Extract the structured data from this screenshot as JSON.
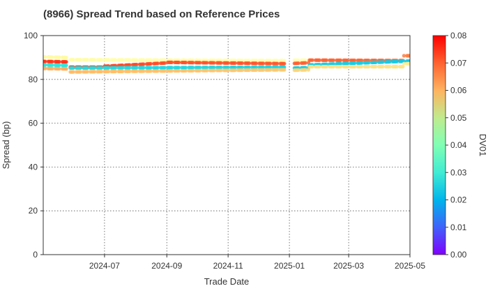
{
  "chart_data": {
    "type": "scatter",
    "title": "(8966)   Spread Trend based on Reference Prices",
    "xlabel": "Trade Date",
    "ylabel": "Spread (bp)",
    "colorbar_label": "DV01",
    "x_range": [
      "2024-05-01",
      "2025-05-01"
    ],
    "ylim": [
      0,
      100
    ],
    "x_ticks": [
      "2024-07",
      "2024-09",
      "2024-11",
      "2025-01",
      "2025-03",
      "2025-05"
    ],
    "y_ticks": [
      0,
      20,
      40,
      60,
      80,
      100
    ],
    "colorbar_range": [
      0,
      0.08
    ],
    "colorbar_ticks": [
      "0.00",
      "0.01",
      "0.02",
      "0.03",
      "0.04",
      "0.05",
      "0.06",
      "0.07",
      "0.08"
    ],
    "colormap": "rainbow",
    "grid": true,
    "series": [
      {
        "segments": [
          {
            "x_start": "2024-05-01",
            "x_end": "2024-05-24",
            "y_start": 90.3,
            "y_end": 90.0,
            "dv01_start": 0.045,
            "dv01_end": 0.045
          },
          {
            "x_start": "2024-05-28",
            "x_end": "2024-12-27",
            "y_start": 89.0,
            "y_end": 88.6,
            "dv01_start": 0.043,
            "dv01_end": 0.041
          },
          {
            "x_start": "2025-01-06",
            "x_end": "2025-01-20",
            "y_start": 88.8,
            "y_end": 88.8,
            "dv01_start": 0.04,
            "dv01_end": 0.04
          }
        ]
      },
      {
        "segments": [
          {
            "x_start": "2024-05-01",
            "x_end": "2024-05-24",
            "y_start": 88.2,
            "y_end": 88.0,
            "dv01_start": 0.075,
            "dv01_end": 0.075
          },
          {
            "x_start": "2024-05-28",
            "x_end": "2024-06-30",
            "y_start": 85.6,
            "y_end": 85.6,
            "dv01_start": 0.074,
            "dv01_end": 0.073
          },
          {
            "x_start": "2024-07-01",
            "x_end": "2024-08-31",
            "y_start": 86.0,
            "y_end": 87.5,
            "dv01_start": 0.073,
            "dv01_end": 0.072
          },
          {
            "x_start": "2024-09-01",
            "x_end": "2024-12-27",
            "y_start": 87.8,
            "y_end": 87.2,
            "dv01_start": 0.072,
            "dv01_end": 0.071
          },
          {
            "x_start": "2025-01-06",
            "x_end": "2025-01-20",
            "y_start": 87.3,
            "y_end": 87.6,
            "dv01_start": 0.07,
            "dv01_end": 0.07
          },
          {
            "x_start": "2025-01-21",
            "x_end": "2025-04-24",
            "y_start": 88.8,
            "y_end": 88.6,
            "dv01_start": 0.07,
            "dv01_end": 0.069
          },
          {
            "x_start": "2025-04-25",
            "x_end": "2025-05-01",
            "y_start": 90.8,
            "y_end": 90.8,
            "dv01_start": 0.067,
            "dv01_end": 0.067
          }
        ]
      },
      {
        "segments": [
          {
            "x_start": "2024-05-01",
            "x_end": "2024-05-24",
            "y_start": 86.6,
            "y_end": 86.4,
            "dv01_start": 0.028,
            "dv01_end": 0.028
          },
          {
            "x_start": "2024-05-28",
            "x_end": "2024-12-27",
            "y_start": 85.2,
            "y_end": 85.6,
            "dv01_start": 0.026,
            "dv01_end": 0.025
          },
          {
            "x_start": "2025-01-06",
            "x_end": "2025-01-20",
            "y_start": 85.2,
            "y_end": 85.4,
            "dv01_start": 0.024,
            "dv01_end": 0.024
          },
          {
            "x_start": "2025-01-21",
            "x_end": "2025-05-01",
            "y_start": 86.6,
            "y_end": 88.4,
            "dv01_start": 0.024,
            "dv01_end": 0.023
          }
        ]
      },
      {
        "segments": [
          {
            "x_start": "2024-05-01",
            "x_end": "2024-05-24",
            "y_start": 85.0,
            "y_end": 84.8,
            "dv01_start": 0.061,
            "dv01_end": 0.061
          },
          {
            "x_start": "2024-05-28",
            "x_end": "2024-12-27",
            "y_start": 83.4,
            "y_end": 84.4,
            "dv01_start": 0.059,
            "dv01_end": 0.057
          },
          {
            "x_start": "2025-01-06",
            "x_end": "2025-01-20",
            "y_start": 84.2,
            "y_end": 84.4,
            "dv01_start": 0.055,
            "dv01_end": 0.055
          },
          {
            "x_start": "2025-01-21",
            "x_end": "2025-04-24",
            "y_start": 85.8,
            "y_end": 85.8,
            "dv01_start": 0.053,
            "dv01_end": 0.052
          },
          {
            "x_start": "2025-04-25",
            "x_end": "2025-05-01",
            "y_start": 87.2,
            "y_end": 87.2,
            "dv01_start": 0.05,
            "dv01_end": 0.05
          }
        ]
      }
    ]
  }
}
